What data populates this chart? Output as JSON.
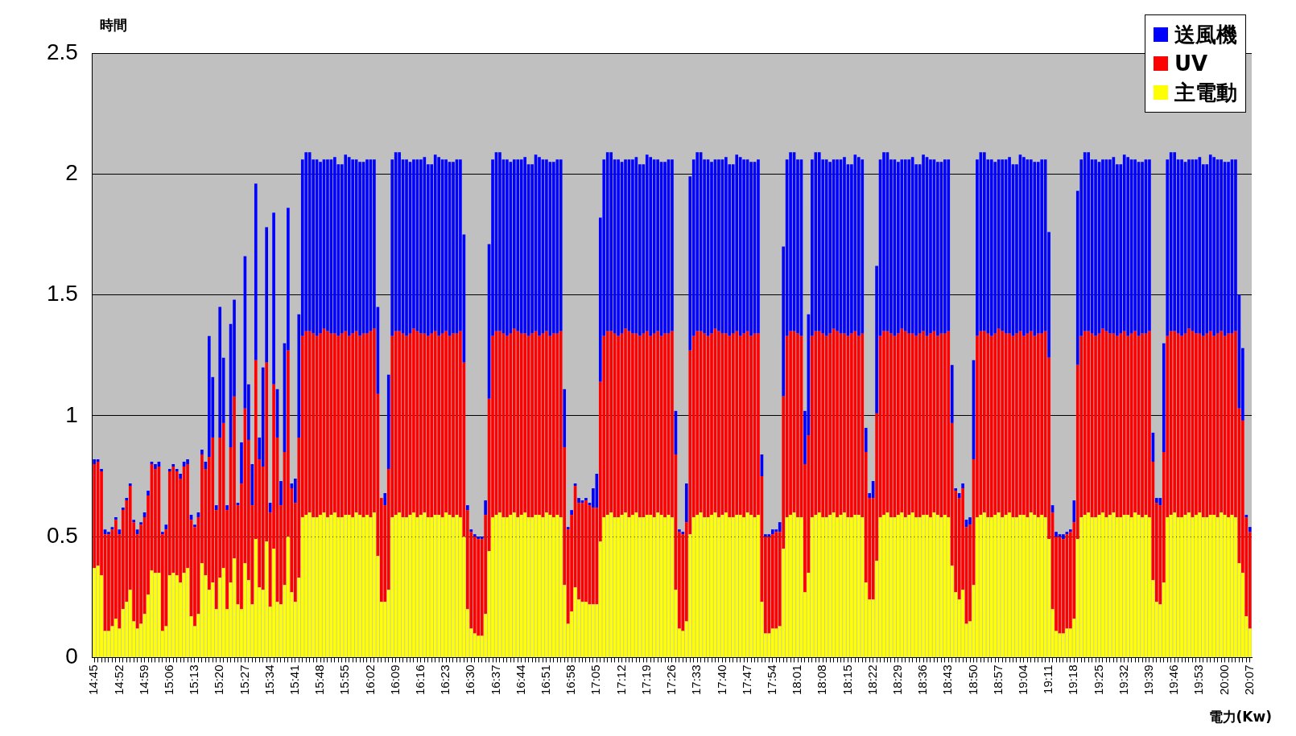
{
  "chart_data": {
    "type": "bar",
    "stacked": true,
    "ylabel": "時間",
    "xlabel": "電力(Kw)",
    "legend": "top right",
    "grid": "y",
    "ylim": [
      0,
      2.5
    ],
    "yticks": [
      0,
      0.5,
      1,
      1.5,
      2,
      2.5
    ],
    "categories": [
      "14:45",
      null,
      null,
      null,
      null,
      null,
      null,
      "14:52",
      null,
      null,
      null,
      null,
      null,
      null,
      "14:59",
      null,
      null,
      null,
      null,
      null,
      null,
      "15:06",
      null,
      null,
      null,
      null,
      null,
      null,
      "15:13",
      null,
      null,
      null,
      null,
      null,
      null,
      "15:20",
      null,
      null,
      null,
      null,
      null,
      null,
      "15:27",
      null,
      null,
      null,
      null,
      null,
      null,
      "15:34",
      null,
      null,
      null,
      null,
      null,
      null,
      "15:41",
      null,
      null,
      null,
      null,
      null,
      null,
      "15:48",
      null,
      null,
      null,
      null,
      null,
      null,
      "15:55",
      null,
      null,
      null,
      null,
      null,
      null,
      "16:02",
      null,
      null,
      null,
      null,
      null,
      null,
      "16:09",
      null,
      null,
      null,
      null,
      null,
      null,
      "16:16",
      null,
      null,
      null,
      null,
      null,
      null,
      "16:23",
      null,
      null,
      null,
      null,
      null,
      null,
      "16:30",
      null,
      null,
      null,
      null,
      null,
      null,
      "16:37",
      null,
      null,
      null,
      null,
      null,
      null,
      "16:44",
      null,
      null,
      null,
      null,
      null,
      null,
      "16:51",
      null,
      null,
      null,
      null,
      null,
      null,
      "16:58",
      null,
      null,
      null,
      null,
      null,
      null,
      "17:05",
      null,
      null,
      null,
      null,
      null,
      null,
      "17:12",
      null,
      null,
      null,
      null,
      null,
      null,
      "17:19",
      null,
      null,
      null,
      null,
      null,
      null,
      "17:26",
      null,
      null,
      null,
      null,
      null,
      null,
      "17:33",
      null,
      null,
      null,
      null,
      null,
      null,
      "17:40",
      null,
      null,
      null,
      null,
      null,
      null,
      "17:47",
      null,
      null,
      null,
      null,
      null,
      null,
      "17:54",
      null,
      null,
      null,
      null,
      null,
      null,
      "18:01",
      null,
      null,
      null,
      null,
      null,
      null,
      "18:08",
      null,
      null,
      null,
      null,
      null,
      null,
      "18:15",
      null,
      null,
      null,
      null,
      null,
      null,
      "18:22",
      null,
      null,
      null,
      null,
      null,
      null,
      "18:29",
      null,
      null,
      null,
      null,
      null,
      null,
      "18:36",
      null,
      null,
      null,
      null,
      null,
      null,
      "18:43",
      null,
      null,
      null,
      null,
      null,
      null,
      "18:50",
      null,
      null,
      null,
      null,
      null,
      null,
      "18:57",
      null,
      null,
      null,
      null,
      null,
      null,
      "19:04",
      null,
      null,
      null,
      null,
      null,
      null,
      "19:11",
      null,
      null,
      null,
      null,
      null,
      null,
      "19:18",
      null,
      null,
      null,
      null,
      null,
      null,
      "19:25",
      null,
      null,
      null,
      null,
      null,
      null,
      "19:32",
      null,
      null,
      null,
      null,
      null,
      null,
      "19:39",
      null,
      null,
      null,
      null,
      null,
      null,
      "19:46",
      null,
      null,
      null,
      null,
      null,
      null,
      "19:53",
      null,
      null,
      null,
      null,
      null,
      null,
      "20:00",
      null,
      null,
      null,
      null,
      null,
      null,
      "20:07"
    ],
    "series": [
      {
        "name": "主電動",
        "color": "#ffff00",
        "values": [
          0.37,
          0.38,
          0.34,
          0.11,
          0.11,
          0.13,
          0.16,
          0.12,
          0.2,
          0.23,
          0.28,
          0.15,
          0.12,
          0.14,
          0.18,
          0.26,
          0.36,
          0.35,
          0.35,
          0.11,
          0.13,
          0.34,
          0.35,
          0.34,
          0.31,
          0.35,
          0.37,
          0.17,
          0.13,
          0.18,
          0.39,
          0.34,
          0.28,
          0.31,
          0.2,
          0.33,
          0.37,
          0.2,
          0.31,
          0.41,
          0.22,
          0.2,
          0.39,
          0.32,
          0.22,
          0.49,
          0.29,
          0.28,
          0.48,
          0.21,
          0.45,
          0.23,
          0.22,
          0.3,
          0.5,
          0.27,
          0.23,
          0.33,
          0.58,
          0.59,
          0.6,
          0.58,
          0.58,
          0.59,
          0.6,
          0.58,
          0.59,
          0.6,
          0.58,
          0.58,
          0.59,
          0.59,
          0.58,
          0.6,
          0.59,
          0.58,
          0.59,
          0.58,
          0.6,
          0.42,
          0.23,
          0.23,
          0.28,
          0.58,
          0.59,
          0.6,
          0.58,
          0.58,
          0.59,
          0.6,
          0.58,
          0.59,
          0.6,
          0.58,
          0.58,
          0.59,
          0.59,
          0.58,
          0.6,
          0.59,
          0.58,
          0.59,
          0.58,
          0.5,
          0.2,
          0.12,
          0.1,
          0.09,
          0.09,
          0.18,
          0.44,
          0.58,
          0.59,
          0.6,
          0.58,
          0.58,
          0.59,
          0.6,
          0.58,
          0.59,
          0.6,
          0.58,
          0.58,
          0.59,
          0.59,
          0.58,
          0.6,
          0.59,
          0.58,
          0.59,
          0.58,
          0.3,
          0.14,
          0.19,
          0.29,
          0.24,
          0.23,
          0.23,
          0.22,
          0.22,
          0.22,
          0.48,
          0.58,
          0.59,
          0.6,
          0.58,
          0.58,
          0.59,
          0.6,
          0.58,
          0.59,
          0.6,
          0.58,
          0.58,
          0.59,
          0.59,
          0.58,
          0.6,
          0.59,
          0.58,
          0.59,
          0.58,
          0.28,
          0.12,
          0.11,
          0.15,
          0.51,
          0.58,
          0.59,
          0.6,
          0.58,
          0.58,
          0.59,
          0.6,
          0.58,
          0.59,
          0.6,
          0.58,
          0.58,
          0.59,
          0.59,
          0.58,
          0.6,
          0.59,
          0.58,
          0.59,
          0.23,
          0.1,
          0.1,
          0.12,
          0.12,
          0.13,
          0.45,
          0.58,
          0.59,
          0.6,
          0.58,
          0.58,
          0.27,
          0.35,
          0.58,
          0.59,
          0.6,
          0.58,
          0.58,
          0.59,
          0.6,
          0.58,
          0.59,
          0.6,
          0.58,
          0.58,
          0.59,
          0.59,
          0.58,
          0.31,
          0.24,
          0.24,
          0.4,
          0.58,
          0.59,
          0.6,
          0.58,
          0.58,
          0.59,
          0.6,
          0.58,
          0.59,
          0.6,
          0.58,
          0.58,
          0.59,
          0.59,
          0.58,
          0.6,
          0.59,
          0.58,
          0.59,
          0.58,
          0.38,
          0.27,
          0.24,
          0.28,
          0.14,
          0.15,
          0.3,
          0.58,
          0.59,
          0.6,
          0.58,
          0.58,
          0.59,
          0.6,
          0.58,
          0.59,
          0.6,
          0.58,
          0.58,
          0.59,
          0.59,
          0.58,
          0.6,
          0.59,
          0.58,
          0.59,
          0.58,
          0.49,
          0.2,
          0.11,
          0.1,
          0.1,
          0.12,
          0.12,
          0.16,
          0.49,
          0.58,
          0.59,
          0.6,
          0.58,
          0.58,
          0.59,
          0.6,
          0.58,
          0.59,
          0.6,
          0.58,
          0.58,
          0.59,
          0.59,
          0.58,
          0.6,
          0.59,
          0.58,
          0.59,
          0.58,
          0.32,
          0.23,
          0.22,
          0.31,
          0.58,
          0.59,
          0.6,
          0.58,
          0.58,
          0.59,
          0.6,
          0.58,
          0.59,
          0.6,
          0.58,
          0.58,
          0.59,
          0.59,
          0.58,
          0.6,
          0.59,
          0.58,
          0.59,
          0.58,
          0.39,
          0.35,
          0.17,
          0.12
        ]
      },
      {
        "name": "UV",
        "color": "#ff0000",
        "values": [
          0.43,
          0.43,
          0.43,
          0.4,
          0.4,
          0.4,
          0.41,
          0.39,
          0.41,
          0.42,
          0.43,
          0.41,
          0.39,
          0.41,
          0.4,
          0.41,
          0.44,
          0.43,
          0.44,
          0.4,
          0.4,
          0.43,
          0.44,
          0.43,
          0.43,
          0.44,
          0.43,
          0.4,
          0.41,
          0.4,
          0.45,
          0.44,
          0.55,
          0.6,
          0.41,
          0.58,
          0.6,
          0.41,
          0.56,
          0.67,
          0.41,
          0.52,
          0.64,
          0.58,
          0.41,
          0.74,
          0.53,
          0.51,
          0.74,
          0.39,
          0.68,
          0.68,
          0.41,
          0.55,
          0.77,
          0.43,
          0.41,
          0.58,
          0.75,
          0.76,
          0.75,
          0.76,
          0.75,
          0.75,
          0.76,
          0.77,
          0.75,
          0.74,
          0.75,
          0.76,
          0.76,
          0.74,
          0.76,
          0.75,
          0.74,
          0.76,
          0.75,
          0.77,
          0.76,
          0.67,
          0.43,
          0.4,
          0.5,
          0.75,
          0.76,
          0.75,
          0.76,
          0.75,
          0.75,
          0.76,
          0.77,
          0.75,
          0.74,
          0.75,
          0.76,
          0.76,
          0.74,
          0.76,
          0.75,
          0.74,
          0.76,
          0.75,
          0.77,
          0.72,
          0.41,
          0.4,
          0.4,
          0.4,
          0.4,
          0.41,
          0.63,
          0.75,
          0.76,
          0.75,
          0.76,
          0.75,
          0.75,
          0.76,
          0.77,
          0.75,
          0.74,
          0.75,
          0.76,
          0.76,
          0.74,
          0.76,
          0.75,
          0.74,
          0.76,
          0.75,
          0.77,
          0.57,
          0.39,
          0.4,
          0.42,
          0.4,
          0.41,
          0.42,
          0.41,
          0.4,
          0.4,
          0.66,
          0.75,
          0.76,
          0.75,
          0.76,
          0.75,
          0.75,
          0.76,
          0.77,
          0.75,
          0.74,
          0.75,
          0.76,
          0.76,
          0.74,
          0.76,
          0.75,
          0.74,
          0.76,
          0.75,
          0.77,
          0.56,
          0.4,
          0.4,
          0.41,
          0.76,
          0.75,
          0.76,
          0.75,
          0.76,
          0.75,
          0.75,
          0.76,
          0.77,
          0.75,
          0.74,
          0.75,
          0.76,
          0.76,
          0.74,
          0.76,
          0.75,
          0.74,
          0.76,
          0.75,
          0.52,
          0.4,
          0.4,
          0.39,
          0.4,
          0.39,
          0.63,
          0.75,
          0.76,
          0.75,
          0.76,
          0.75,
          0.53,
          0.57,
          0.75,
          0.76,
          0.75,
          0.76,
          0.75,
          0.75,
          0.76,
          0.77,
          0.75,
          0.74,
          0.75,
          0.76,
          0.76,
          0.74,
          0.76,
          0.54,
          0.42,
          0.42,
          0.61,
          0.75,
          0.76,
          0.75,
          0.76,
          0.75,
          0.75,
          0.76,
          0.77,
          0.75,
          0.74,
          0.75,
          0.76,
          0.76,
          0.74,
          0.76,
          0.75,
          0.74,
          0.76,
          0.75,
          0.77,
          0.59,
          0.42,
          0.42,
          0.42,
          0.4,
          0.4,
          0.52,
          0.75,
          0.76,
          0.75,
          0.76,
          0.75,
          0.75,
          0.76,
          0.77,
          0.75,
          0.74,
          0.75,
          0.76,
          0.76,
          0.74,
          0.76,
          0.75,
          0.74,
          0.76,
          0.75,
          0.77,
          0.75,
          0.4,
          0.39,
          0.4,
          0.39,
          0.39,
          0.4,
          0.4,
          0.72,
          0.75,
          0.76,
          0.75,
          0.76,
          0.75,
          0.75,
          0.76,
          0.77,
          0.75,
          0.74,
          0.75,
          0.76,
          0.76,
          0.74,
          0.76,
          0.75,
          0.74,
          0.76,
          0.75,
          0.77,
          0.49,
          0.41,
          0.41,
          0.54,
          0.75,
          0.76,
          0.75,
          0.76,
          0.75,
          0.75,
          0.76,
          0.77,
          0.75,
          0.74,
          0.75,
          0.76,
          0.76,
          0.74,
          0.76,
          0.75,
          0.74,
          0.76,
          0.75,
          0.77,
          0.64,
          0.63,
          0.41,
          0.4
        ]
      },
      {
        "name": "送風機",
        "color": "#0000ff",
        "values": [
          0.02,
          0.01,
          0.01,
          0.02,
          0.01,
          0.01,
          0.01,
          0.02,
          0.01,
          0.01,
          0.01,
          0.01,
          0.02,
          0.01,
          0.02,
          0.02,
          0.01,
          0.02,
          0.02,
          0.01,
          0.02,
          0.01,
          0.01,
          0.01,
          0.02,
          0.02,
          0.02,
          0.02,
          0.01,
          0.02,
          0.02,
          0.03,
          0.5,
          0.25,
          0.02,
          0.54,
          0.27,
          0.02,
          0.51,
          0.4,
          0.01,
          0.17,
          0.63,
          0.23,
          0.17,
          0.73,
          0.09,
          0.41,
          0.56,
          0.04,
          0.71,
          0.2,
          0.1,
          0.45,
          0.59,
          0.02,
          0.1,
          0.51,
          0.73,
          0.74,
          0.74,
          0.72,
          0.73,
          0.71,
          0.7,
          0.71,
          0.72,
          0.73,
          0.71,
          0.7,
          0.73,
          0.74,
          0.72,
          0.71,
          0.72,
          0.71,
          0.72,
          0.71,
          0.7,
          0.36,
          0.0,
          0.05,
          0.39,
          0.73,
          0.74,
          0.74,
          0.72,
          0.73,
          0.71,
          0.7,
          0.71,
          0.72,
          0.73,
          0.71,
          0.7,
          0.73,
          0.74,
          0.72,
          0.71,
          0.72,
          0.71,
          0.72,
          0.71,
          0.53,
          0.02,
          0.01,
          0.01,
          0.01,
          0.01,
          0.06,
          0.64,
          0.73,
          0.74,
          0.74,
          0.72,
          0.73,
          0.71,
          0.7,
          0.71,
          0.72,
          0.73,
          0.71,
          0.7,
          0.73,
          0.74,
          0.72,
          0.71,
          0.72,
          0.71,
          0.72,
          0.71,
          0.24,
          0.01,
          0.02,
          0.01,
          0.02,
          0.01,
          0.01,
          0.01,
          0.08,
          0.14,
          0.68,
          0.73,
          0.74,
          0.74,
          0.72,
          0.73,
          0.71,
          0.7,
          0.71,
          0.72,
          0.73,
          0.71,
          0.7,
          0.73,
          0.74,
          0.72,
          0.71,
          0.72,
          0.71,
          0.72,
          0.71,
          0.18,
          0.01,
          0.01,
          0.16,
          0.72,
          0.73,
          0.74,
          0.74,
          0.72,
          0.73,
          0.71,
          0.7,
          0.71,
          0.72,
          0.73,
          0.71,
          0.7,
          0.73,
          0.74,
          0.72,
          0.71,
          0.72,
          0.71,
          0.72,
          0.09,
          0.01,
          0.01,
          0.02,
          0.01,
          0.04,
          0.62,
          0.73,
          0.74,
          0.74,
          0.72,
          0.73,
          0.22,
          0.5,
          0.73,
          0.74,
          0.74,
          0.72,
          0.73,
          0.71,
          0.7,
          0.71,
          0.72,
          0.73,
          0.71,
          0.7,
          0.73,
          0.74,
          0.72,
          0.1,
          0.02,
          0.07,
          0.61,
          0.73,
          0.74,
          0.74,
          0.72,
          0.73,
          0.71,
          0.7,
          0.71,
          0.72,
          0.73,
          0.71,
          0.7,
          0.73,
          0.74,
          0.72,
          0.71,
          0.72,
          0.71,
          0.72,
          0.71,
          0.24,
          0.01,
          0.02,
          0.02,
          0.03,
          0.03,
          0.41,
          0.73,
          0.74,
          0.74,
          0.72,
          0.73,
          0.71,
          0.7,
          0.71,
          0.72,
          0.73,
          0.71,
          0.7,
          0.73,
          0.74,
          0.72,
          0.71,
          0.72,
          0.71,
          0.72,
          0.71,
          0.52,
          0.03,
          0.02,
          0.01,
          0.02,
          0.01,
          0.01,
          0.09,
          0.72,
          0.73,
          0.74,
          0.74,
          0.72,
          0.73,
          0.71,
          0.7,
          0.71,
          0.72,
          0.73,
          0.71,
          0.7,
          0.73,
          0.74,
          0.72,
          0.71,
          0.72,
          0.71,
          0.72,
          0.71,
          0.12,
          0.02,
          0.03,
          0.45,
          0.73,
          0.74,
          0.74,
          0.72,
          0.73,
          0.71,
          0.7,
          0.71,
          0.72,
          0.73,
          0.71,
          0.7,
          0.73,
          0.74,
          0.72,
          0.71,
          0.72,
          0.71,
          0.72,
          0.71,
          0.47,
          0.3,
          0.01,
          0.02
        ]
      }
    ]
  }
}
